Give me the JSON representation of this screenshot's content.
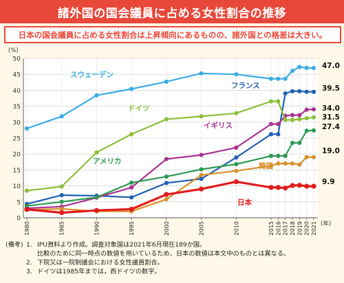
{
  "title": "諸外国の国会議員に占める女性割合の推移",
  "subtitle": "日本の国会議員に占める女性割合は上昇傾向にあるものの、諸外国との格差は大きい。",
  "notes": {
    "prefix": "(備考)",
    "items": [
      {
        "num": "1.",
        "text": "IPU資料より作成。調査対象国は2021年6月現在189か国。"
      },
      {
        "num": "",
        "text": "比較のために同一時点の数値を用いているため、日本の数値は本文中のものとは異なる。"
      },
      {
        "num": "2.",
        "text": "下院又は一院制議会における女性議員割合。"
      },
      {
        "num": "3.",
        "text": "ドイツは1985年までは，西ドイツの数字。"
      }
    ]
  },
  "chart_data": {
    "type": "line",
    "y_unit": "(%)",
    "x_unit": "(年)",
    "ylim": [
      0,
      50
    ],
    "y_ticks": [
      0,
      5,
      10,
      15,
      20,
      25,
      30,
      35,
      40,
      45,
      50
    ],
    "x_ticks": [
      "1980",
      "1985",
      "1990",
      "1995",
      "2000",
      "2005",
      "2010",
      "2015",
      "2016",
      "2017",
      "2018",
      "2019",
      "2020",
      "2021"
    ],
    "grid": true,
    "series": [
      {
        "name": "スウェーデン",
        "color": "#3aace6",
        "end_label": "47.0",
        "points": [
          [
            1980,
            28.0
          ],
          [
            1985,
            31.8
          ],
          [
            1990,
            38.4
          ],
          [
            1995,
            40.4
          ],
          [
            2000,
            42.7
          ],
          [
            2005,
            45.3
          ],
          [
            2010,
            45.0
          ],
          [
            2015,
            43.6
          ],
          [
            2016,
            43.6
          ],
          [
            2017,
            43.6
          ],
          [
            2018,
            46.1
          ],
          [
            2019,
            47.3
          ],
          [
            2020,
            47.0
          ],
          [
            2021,
            47.0
          ]
        ]
      },
      {
        "name": "フランス",
        "color": "#2060b0",
        "end_label": "39.5",
        "points": [
          [
            1980,
            4.3
          ],
          [
            1985,
            7.1
          ],
          [
            1990,
            6.9
          ],
          [
            1995,
            6.4
          ],
          [
            2000,
            10.9
          ],
          [
            2005,
            12.2
          ],
          [
            2010,
            18.9
          ],
          [
            2015,
            26.2
          ],
          [
            2016,
            26.2
          ],
          [
            2017,
            39.0
          ],
          [
            2018,
            39.7
          ],
          [
            2019,
            39.7
          ],
          [
            2020,
            39.5
          ],
          [
            2021,
            39.5
          ]
        ]
      },
      {
        "name": "イギリス",
        "color": "#a83290",
        "end_label": "34.0",
        "points": [
          [
            1980,
            3.0
          ],
          [
            1985,
            3.5
          ],
          [
            1990,
            6.3
          ],
          [
            1995,
            9.5
          ],
          [
            2000,
            18.4
          ],
          [
            2005,
            19.7
          ],
          [
            2010,
            22.0
          ],
          [
            2015,
            29.4
          ],
          [
            2016,
            29.4
          ],
          [
            2017,
            32.0
          ],
          [
            2018,
            32.2
          ],
          [
            2019,
            32.2
          ],
          [
            2020,
            33.9
          ],
          [
            2021,
            34.0
          ]
        ]
      },
      {
        "name": "ドイツ",
        "color": "#8cbf3a",
        "end_label": "31.5",
        "points": [
          [
            1980,
            8.5
          ],
          [
            1985,
            9.8
          ],
          [
            1990,
            20.5
          ],
          [
            1995,
            26.2
          ],
          [
            2000,
            30.9
          ],
          [
            2005,
            31.8
          ],
          [
            2010,
            32.8
          ],
          [
            2015,
            36.5
          ],
          [
            2016,
            36.5
          ],
          [
            2017,
            30.7
          ],
          [
            2018,
            30.7
          ],
          [
            2019,
            30.9
          ],
          [
            2020,
            31.2
          ],
          [
            2021,
            31.5
          ]
        ]
      },
      {
        "name": "アメリカ",
        "color": "#2e9a52",
        "end_label": "27.4",
        "points": [
          [
            1980,
            3.7
          ],
          [
            1985,
            5.0
          ],
          [
            1990,
            6.4
          ],
          [
            1995,
            11.0
          ],
          [
            2000,
            12.9
          ],
          [
            2005,
            15.2
          ],
          [
            2010,
            16.8
          ],
          [
            2015,
            19.4
          ],
          [
            2016,
            19.4
          ],
          [
            2017,
            19.4
          ],
          [
            2018,
            23.5
          ],
          [
            2019,
            23.5
          ],
          [
            2020,
            27.3
          ],
          [
            2021,
            27.4
          ]
        ]
      },
      {
        "name": "韓国",
        "color": "#d8902a",
        "end_label": "19.0",
        "points": [
          [
            1980,
            2.5
          ],
          [
            1985,
            2.8
          ],
          [
            1990,
            2.0
          ],
          [
            1995,
            2.0
          ],
          [
            2000,
            5.8
          ],
          [
            2005,
            13.4
          ],
          [
            2010,
            14.7
          ],
          [
            2015,
            16.3
          ],
          [
            2016,
            17.0
          ],
          [
            2017,
            17.0
          ],
          [
            2018,
            17.0
          ],
          [
            2019,
            16.7
          ],
          [
            2020,
            19.0
          ],
          [
            2021,
            19.0
          ]
        ]
      },
      {
        "name": "日本",
        "color": "#e01c1c",
        "end_label": "9.9",
        "points": [
          [
            1980,
            2.6
          ],
          [
            1985,
            1.6
          ],
          [
            1990,
            2.3
          ],
          [
            1995,
            2.7
          ],
          [
            2000,
            7.3
          ],
          [
            2005,
            9.0
          ],
          [
            2010,
            11.3
          ],
          [
            2015,
            9.5
          ],
          [
            2016,
            9.5
          ],
          [
            2017,
            9.3
          ],
          [
            2018,
            10.1
          ],
          [
            2019,
            10.2
          ],
          [
            2020,
            9.9
          ],
          [
            2021,
            9.9
          ]
        ]
      }
    ]
  }
}
